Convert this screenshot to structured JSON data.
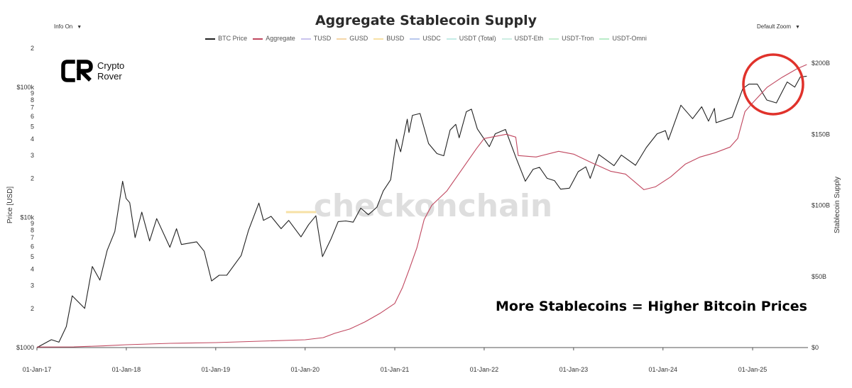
{
  "title": "Aggregate Stablecoin Supply",
  "controls": {
    "info": "Info On",
    "zoom": "Default Zoom"
  },
  "legend": [
    {
      "name": "BTC Price",
      "color": "#222222"
    },
    {
      "name": "Aggregate",
      "color": "#c0475f"
    },
    {
      "name": "TUSD",
      "color": "#c9c3ee"
    },
    {
      "name": "GUSD",
      "color": "#f4d7a8"
    },
    {
      "name": "BUSD",
      "color": "#f7e1a6"
    },
    {
      "name": "USDC",
      "color": "#b9c8ee"
    },
    {
      "name": "USDT (Total)",
      "color": "#c5ece6"
    },
    {
      "name": "USDT-Eth",
      "color": "#cdeee3"
    },
    {
      "name": "USDT-Tron",
      "color": "#c6eed0"
    },
    {
      "name": "USDT-Omni",
      "color": "#b9ecc8"
    }
  ],
  "logo": {
    "line1": "Crypto",
    "line2": "Rover"
  },
  "watermark": "checkonchain",
  "callout": "More Stablecoins = Higher Bitcoin Prices",
  "chart_data": {
    "type": "line",
    "title": "Aggregate Stablecoin Supply",
    "xlabel": "",
    "y_left_label": "Price [USD]",
    "y_left_scale": "log",
    "y_left_range": [
      1000,
      200000
    ],
    "y_left_ticks": [
      {
        "v": 1000,
        "l": "$1000"
      },
      {
        "v": 2000,
        "l": "2"
      },
      {
        "v": 3000,
        "l": "3"
      },
      {
        "v": 4000,
        "l": "4"
      },
      {
        "v": 5000,
        "l": "5"
      },
      {
        "v": 6000,
        "l": "6"
      },
      {
        "v": 7000,
        "l": "7"
      },
      {
        "v": 8000,
        "l": "8"
      },
      {
        "v": 9000,
        "l": "9"
      },
      {
        "v": 10000,
        "l": "$10k"
      },
      {
        "v": 20000,
        "l": "2"
      },
      {
        "v": 30000,
        "l": "3"
      },
      {
        "v": 40000,
        "l": "4"
      },
      {
        "v": 50000,
        "l": "5"
      },
      {
        "v": 60000,
        "l": "6"
      },
      {
        "v": 70000,
        "l": "7"
      },
      {
        "v": 80000,
        "l": "8"
      },
      {
        "v": 90000,
        "l": "9"
      },
      {
        "v": 100000,
        "l": "$100k"
      },
      {
        "v": 200000,
        "l": "2"
      }
    ],
    "y_right_label": "Stablecoin Supply",
    "y_right_range": [
      0,
      200
    ],
    "y_right_ticks": [
      {
        "v": 0,
        "l": "$0"
      },
      {
        "v": 50,
        "l": "$50B"
      },
      {
        "v": 100,
        "l": "$100B"
      },
      {
        "v": 150,
        "l": "$150B"
      },
      {
        "v": 200,
        "l": "$200B"
      }
    ],
    "x_ticks": [
      "01-Jan-17",
      "01-Jan-18",
      "01-Jan-19",
      "01-Jan-20",
      "01-Jan-21",
      "01-Jan-22",
      "01-Jan-23",
      "01-Jan-24",
      "01-Jan-25"
    ],
    "x_range": [
      "2017-01-01",
      "2025-08-15"
    ],
    "series": [
      {
        "name": "BTC Price",
        "color": "#222222",
        "axis": "left",
        "points": [
          [
            "2017-01-01",
            1000
          ],
          [
            "2017-03-01",
            1150
          ],
          [
            "2017-04-01",
            1100
          ],
          [
            "2017-05-01",
            1450
          ],
          [
            "2017-05-25",
            2500
          ],
          [
            "2017-07-15",
            2000
          ],
          [
            "2017-08-15",
            4200
          ],
          [
            "2017-09-15",
            3300
          ],
          [
            "2017-10-15",
            5600
          ],
          [
            "2017-11-15",
            7800
          ],
          [
            "2017-12-17",
            19000
          ],
          [
            "2017-12-31",
            14000
          ],
          [
            "2018-01-15",
            13000
          ],
          [
            "2018-02-06",
            7000
          ],
          [
            "2018-03-05",
            11000
          ],
          [
            "2018-04-06",
            6600
          ],
          [
            "2018-05-05",
            9800
          ],
          [
            "2018-06-28",
            5900
          ],
          [
            "2018-07-25",
            8200
          ],
          [
            "2018-08-14",
            6200
          ],
          [
            "2018-10-15",
            6500
          ],
          [
            "2018-11-15",
            5500
          ],
          [
            "2018-12-15",
            3250
          ],
          [
            "2019-01-15",
            3600
          ],
          [
            "2019-02-15",
            3600
          ],
          [
            "2019-04-15",
            5100
          ],
          [
            "2019-05-15",
            8000
          ],
          [
            "2019-06-26",
            12900
          ],
          [
            "2019-07-15",
            9500
          ],
          [
            "2019-08-15",
            10200
          ],
          [
            "2019-09-25",
            8200
          ],
          [
            "2019-10-26",
            9500
          ],
          [
            "2019-12-15",
            7100
          ],
          [
            "2020-01-15",
            8800
          ],
          [
            "2020-02-14",
            10300
          ],
          [
            "2020-03-12",
            5000
          ],
          [
            "2020-04-15",
            6800
          ],
          [
            "2020-05-15",
            9300
          ],
          [
            "2020-06-15",
            9400
          ],
          [
            "2020-07-15",
            9200
          ],
          [
            "2020-08-15",
            11800
          ],
          [
            "2020-09-15",
            10500
          ],
          [
            "2020-10-20",
            12000
          ],
          [
            "2020-11-15",
            16000
          ],
          [
            "2020-12-15",
            19500
          ],
          [
            "2021-01-08",
            40000
          ],
          [
            "2021-01-25",
            32000
          ],
          [
            "2021-02-21",
            57000
          ],
          [
            "2021-02-28",
            45000
          ],
          [
            "2021-03-14",
            61000
          ],
          [
            "2021-04-14",
            63000
          ],
          [
            "2021-05-19",
            37000
          ],
          [
            "2021-06-22",
            31000
          ],
          [
            "2021-07-20",
            29800
          ],
          [
            "2021-08-15",
            47000
          ],
          [
            "2021-09-07",
            52000
          ],
          [
            "2021-09-21",
            41000
          ],
          [
            "2021-10-20",
            65000
          ],
          [
            "2021-11-10",
            68000
          ],
          [
            "2021-12-04",
            48000
          ],
          [
            "2022-01-22",
            35000
          ],
          [
            "2022-02-15",
            44000
          ],
          [
            "2022-03-29",
            47500
          ],
          [
            "2022-05-12",
            28500
          ],
          [
            "2022-06-18",
            19000
          ],
          [
            "2022-07-20",
            23500
          ],
          [
            "2022-08-15",
            24300
          ],
          [
            "2022-09-15",
            20000
          ],
          [
            "2022-10-15",
            19200
          ],
          [
            "2022-11-09",
            16500
          ],
          [
            "2022-12-15",
            16800
          ],
          [
            "2023-01-20",
            22500
          ],
          [
            "2023-02-20",
            24500
          ],
          [
            "2023-03-10",
            20000
          ],
          [
            "2023-04-14",
            30500
          ],
          [
            "2023-06-15",
            25000
          ],
          [
            "2023-07-15",
            30200
          ],
          [
            "2023-09-11",
            25200
          ],
          [
            "2023-10-25",
            34500
          ],
          [
            "2023-12-08",
            44000
          ],
          [
            "2024-01-11",
            46500
          ],
          [
            "2024-01-23",
            39500
          ],
          [
            "2024-03-14",
            73000
          ],
          [
            "2024-05-01",
            57500
          ],
          [
            "2024-06-07",
            71000
          ],
          [
            "2024-07-05",
            55000
          ],
          [
            "2024-07-29",
            69000
          ],
          [
            "2024-08-05",
            53500
          ],
          [
            "2024-10-10",
            59000
          ],
          [
            "2024-11-22",
            98000
          ],
          [
            "2024-12-17",
            106000
          ],
          [
            "2025-01-20",
            106000
          ],
          [
            "2025-02-28",
            80000
          ],
          [
            "2025-04-08",
            76000
          ],
          [
            "2025-05-22",
            110000
          ],
          [
            "2025-06-22",
            100500
          ],
          [
            "2025-07-14",
            120000
          ],
          [
            "2025-08-10",
            122000
          ]
        ]
      },
      {
        "name": "Aggregate",
        "color": "#c0475f",
        "axis": "right",
        "points": [
          [
            "2017-01-01",
            0.4
          ],
          [
            "2017-06-01",
            0.5
          ],
          [
            "2017-10-01",
            1.2
          ],
          [
            "2018-01-01",
            2.0
          ],
          [
            "2018-07-01",
            3.0
          ],
          [
            "2019-01-01",
            3.5
          ],
          [
            "2019-07-01",
            4.5
          ],
          [
            "2020-01-01",
            5.5
          ],
          [
            "2020-03-15",
            7.0
          ],
          [
            "2020-05-01",
            10.0
          ],
          [
            "2020-07-01",
            13.0
          ],
          [
            "2020-09-01",
            18.0
          ],
          [
            "2020-11-01",
            24.0
          ],
          [
            "2021-01-01",
            31.0
          ],
          [
            "2021-02-01",
            42.0
          ],
          [
            "2021-03-01",
            55.0
          ],
          [
            "2021-04-01",
            70.0
          ],
          [
            "2021-05-01",
            90.0
          ],
          [
            "2021-06-01",
            100.0
          ],
          [
            "2021-08-01",
            110.0
          ],
          [
            "2021-10-01",
            125.0
          ],
          [
            "2021-12-01",
            140.0
          ],
          [
            "2022-01-01",
            147.0
          ],
          [
            "2022-04-01",
            150.0
          ],
          [
            "2022-05-10",
            148.0
          ],
          [
            "2022-05-20",
            135.0
          ],
          [
            "2022-08-01",
            134.0
          ],
          [
            "2022-11-01",
            138.0
          ],
          [
            "2023-01-01",
            136.0
          ],
          [
            "2023-03-15",
            130.0
          ],
          [
            "2023-06-01",
            124.0
          ],
          [
            "2023-08-01",
            122.0
          ],
          [
            "2023-10-15",
            111.0
          ],
          [
            "2023-12-01",
            113.0
          ],
          [
            "2024-02-01",
            120.0
          ],
          [
            "2024-04-01",
            129.0
          ],
          [
            "2024-06-01",
            134.0
          ],
          [
            "2024-08-01",
            137.0
          ],
          [
            "2024-10-01",
            141.0
          ],
          [
            "2024-11-01",
            147.0
          ],
          [
            "2024-12-01",
            166.0
          ],
          [
            "2025-01-01",
            172.0
          ],
          [
            "2025-03-01",
            183.0
          ],
          [
            "2025-05-01",
            190.0
          ],
          [
            "2025-07-01",
            196.0
          ],
          [
            "2025-08-10",
            199.0
          ]
        ]
      },
      {
        "name": "BUSD",
        "color": "#f7e1a6",
        "axis": "left",
        "points": [
          [
            "2019-10-15",
            11000
          ],
          [
            "2020-02-15",
            11000
          ]
        ]
      }
    ]
  }
}
